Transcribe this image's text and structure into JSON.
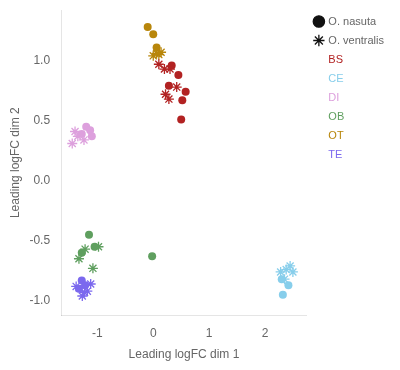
{
  "chart_data": {
    "type": "scatter",
    "xlabel": "Leading logFC dim 1",
    "ylabel": "Leading logFC dim 2",
    "xlim": [
      -1.65,
      2.75
    ],
    "ylim": [
      -1.12,
      1.42
    ],
    "xticks": [
      -1,
      0,
      1,
      2
    ],
    "yticks": [
      {
        "value": -1.0,
        "label": "-1.0"
      },
      {
        "value": -0.5,
        "label": "-0.5"
      },
      {
        "value": 0.0,
        "label": "0.0"
      },
      {
        "value": 0.5,
        "label": "0.5"
      },
      {
        "value": 1.0,
        "label": "1.0"
      }
    ],
    "grid": false,
    "legend": "upper right",
    "groups": [
      {
        "name": "O. nasuta",
        "marker": "circle",
        "color": "#111111"
      },
      {
        "name": "O. ventralis",
        "marker": "asterisk",
        "color": "#111111"
      }
    ],
    "series": [
      {
        "name": "BS",
        "group": "O. nasuta",
        "color": "#B22222",
        "values": [
          [
            0.33,
            0.96
          ],
          [
            0.45,
            0.88
          ],
          [
            0.28,
            0.79
          ],
          [
            0.58,
            0.74
          ],
          [
            0.52,
            0.67
          ],
          [
            0.5,
            0.51
          ]
        ]
      },
      {
        "name": "BS",
        "group": "O. ventralis",
        "color": "#B22222",
        "values": [
          [
            0.1,
            0.97
          ],
          [
            0.2,
            0.93
          ],
          [
            0.3,
            0.93
          ],
          [
            0.42,
            0.78
          ],
          [
            0.22,
            0.72
          ],
          [
            0.28,
            0.68
          ]
        ]
      },
      {
        "name": "CE",
        "group": "O. nasuta",
        "color": "#87CEEB",
        "values": [
          [
            2.32,
            -0.95
          ],
          [
            2.42,
            -0.87
          ],
          [
            2.3,
            -0.82
          ]
        ]
      },
      {
        "name": "CE",
        "group": "O. ventralis",
        "color": "#87CEEB",
        "values": [
          [
            2.28,
            -0.76
          ],
          [
            2.38,
            -0.74
          ],
          [
            2.45,
            -0.71
          ],
          [
            2.5,
            -0.76
          ],
          [
            2.35,
            -0.82
          ]
        ]
      },
      {
        "name": "DI",
        "group": "O. nasuta",
        "color": "#DDA0DD",
        "values": [
          [
            -1.2,
            0.45
          ],
          [
            -1.13,
            0.42
          ],
          [
            -1.28,
            0.39
          ],
          [
            -1.1,
            0.37
          ]
        ]
      },
      {
        "name": "DI",
        "group": "O. ventralis",
        "color": "#DDA0DD",
        "values": [
          [
            -1.24,
            0.34
          ],
          [
            -1.35,
            0.37
          ],
          [
            -1.4,
            0.41
          ],
          [
            -1.45,
            0.31
          ]
        ]
      },
      {
        "name": "OB",
        "group": "O. nasuta",
        "color": "#5F9F5F",
        "values": [
          [
            -1.15,
            -0.45
          ],
          [
            -1.05,
            -0.55
          ],
          [
            -1.28,
            -0.6
          ],
          [
            -0.02,
            -0.63
          ]
        ]
      },
      {
        "name": "OB",
        "group": "O. ventralis",
        "color": "#5F9F5F",
        "values": [
          [
            -0.98,
            -0.55
          ],
          [
            -1.22,
            -0.57
          ],
          [
            -1.33,
            -0.65
          ],
          [
            -1.08,
            -0.73
          ]
        ]
      },
      {
        "name": "OT",
        "group": "O. nasuta",
        "color": "#B8860B",
        "values": [
          [
            -0.1,
            1.28
          ],
          [
            0.0,
            1.22
          ],
          [
            0.06,
            1.11
          ]
        ]
      },
      {
        "name": "OT",
        "group": "O. ventralis",
        "color": "#B8860B",
        "values": [
          [
            0.0,
            1.04
          ],
          [
            0.1,
            1.05
          ],
          [
            0.14,
            1.07
          ],
          [
            0.06,
            1.06
          ]
        ]
      },
      {
        "name": "TE",
        "group": "O. nasuta",
        "color": "#7B68EE",
        "values": [
          [
            -1.28,
            -0.83
          ],
          [
            -1.22,
            -0.87
          ],
          [
            -1.33,
            -0.9
          ]
        ]
      },
      {
        "name": "TE",
        "group": "O. ventralis",
        "color": "#7B68EE",
        "values": [
          [
            -1.18,
            -0.92
          ],
          [
            -1.27,
            -0.96
          ],
          [
            -1.23,
            -0.93
          ],
          [
            -1.12,
            -0.86
          ],
          [
            -1.38,
            -0.88
          ]
        ]
      }
    ]
  }
}
